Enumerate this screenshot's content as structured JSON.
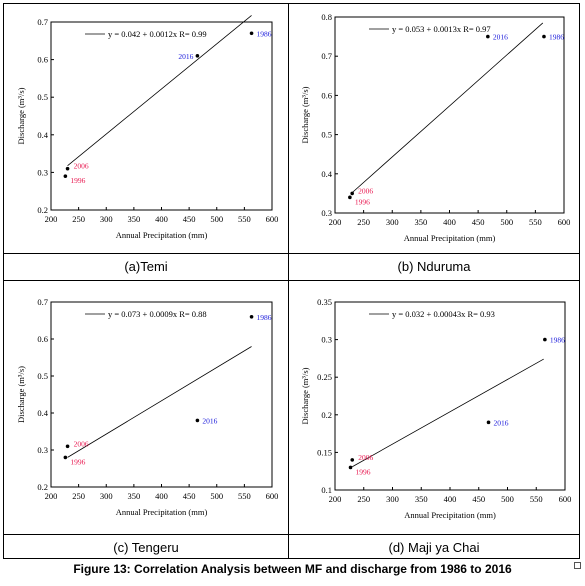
{
  "figure_caption": "Figure 13: Correlation Analysis between MF and discharge from 1986 to 2016",
  "panel_captions": [
    "(a)Temi",
    "(b) Nduruma",
    "(c) Tengeru",
    "(d) Maji ya Chai"
  ],
  "chart_data": [
    {
      "type": "scatter",
      "title": "",
      "xlabel": "Annual Precipitation (mm)",
      "ylabel": "Discharge (m³/s)",
      "xlim": [
        200,
        600
      ],
      "ylim": [
        0.2,
        0.7
      ],
      "xticks": [
        200,
        250,
        300,
        350,
        400,
        450,
        500,
        550,
        600
      ],
      "yticks": [
        0.2,
        0.3,
        0.4,
        0.5,
        0.6,
        0.7
      ],
      "ytick_labels": [
        "0.2",
        "0.3",
        "0.4",
        "0.5",
        "0.6",
        "0.7"
      ],
      "points": [
        {
          "label": "2006",
          "x": 230,
          "y": 0.31,
          "color": "#e8174f"
        },
        {
          "label": "1996",
          "x": 226,
          "y": 0.29,
          "color": "#e8174f"
        },
        {
          "label": "2016",
          "x": 465,
          "y": 0.61,
          "color": "#1a1adb"
        },
        {
          "label": "1986",
          "x": 563,
          "y": 0.67,
          "color": "#1a1adb"
        }
      ],
      "trendline": {
        "intercept": 0.042,
        "slope": 0.0012,
        "x_range": [
          230,
          563
        ],
        "legend": "y = 0.042 + 0.0012x   R= 0.99"
      }
    },
    {
      "type": "scatter",
      "title": "",
      "xlabel": "Annual Precipitation (mm)",
      "ylabel": "Discharge (m³/s)",
      "xlim": [
        200,
        600
      ],
      "ylim": [
        0.3,
        0.8
      ],
      "xticks": [
        200,
        250,
        300,
        350,
        400,
        450,
        500,
        550,
        600
      ],
      "yticks": [
        0.3,
        0.4,
        0.5,
        0.6,
        0.7,
        0.8
      ],
      "ytick_labels": [
        "0.3",
        "0.4",
        "0.5",
        "0.6",
        "0.7",
        "0.8"
      ],
      "points": [
        {
          "label": "2006",
          "x": 230,
          "y": 0.35,
          "color": "#e8174f"
        },
        {
          "label": "1996",
          "x": 226,
          "y": 0.34,
          "color": "#e8174f"
        },
        {
          "label": "2016",
          "x": 467,
          "y": 0.75,
          "color": "#1a1adb"
        },
        {
          "label": "1986",
          "x": 565,
          "y": 0.75,
          "color": "#1a1adb"
        }
      ],
      "trendline": {
        "intercept": 0.053,
        "slope": 0.0013,
        "x_range": [
          230,
          563
        ],
        "legend": "y = 0.053 + 0.0013x   R= 0.97"
      }
    },
    {
      "type": "scatter",
      "title": "",
      "xlabel": "Annual Precipitation (mm)",
      "ylabel": "Discharge (m³/s)",
      "xlim": [
        200,
        600
      ],
      "ylim": [
        0.2,
        0.7
      ],
      "xticks": [
        200,
        250,
        300,
        350,
        400,
        450,
        500,
        550,
        600
      ],
      "yticks": [
        0.2,
        0.3,
        0.4,
        0.5,
        0.6,
        0.7
      ],
      "ytick_labels": [
        "0.2",
        "0.3",
        "0.4",
        "0.5",
        "0.6",
        "0.7"
      ],
      "points": [
        {
          "label": "2006",
          "x": 230,
          "y": 0.31,
          "color": "#e8174f"
        },
        {
          "label": "1996",
          "x": 226,
          "y": 0.28,
          "color": "#e8174f"
        },
        {
          "label": "2016",
          "x": 465,
          "y": 0.38,
          "color": "#1a1adb"
        },
        {
          "label": "1986",
          "x": 563,
          "y": 0.66,
          "color": "#1a1adb"
        }
      ],
      "trendline": {
        "intercept": 0.073,
        "slope": 0.0009,
        "x_range": [
          230,
          563
        ],
        "legend": "y = 0.073 + 0.0009x   R= 0.88"
      }
    },
    {
      "type": "scatter",
      "title": "",
      "xlabel": "Annual Precipitation (mm)",
      "ylabel": "Discharge (m³/s)",
      "xlim": [
        200,
        600
      ],
      "ylim": [
        0.1,
        0.35
      ],
      "xticks": [
        200,
        250,
        300,
        350,
        400,
        450,
        500,
        550,
        600
      ],
      "yticks": [
        0.1,
        0.15,
        0.2,
        0.25,
        0.3,
        0.35
      ],
      "ytick_labels": [
        "0.1",
        "0.15",
        "0.2",
        "0.25",
        "0.3",
        "0.35"
      ],
      "points": [
        {
          "label": "2006",
          "x": 230,
          "y": 0.14,
          "color": "#e8174f"
        },
        {
          "label": "1996",
          "x": 227,
          "y": 0.13,
          "color": "#e8174f"
        },
        {
          "label": "2016",
          "x": 467,
          "y": 0.19,
          "color": "#1a1adb"
        },
        {
          "label": "1986",
          "x": 565,
          "y": 0.3,
          "color": "#1a1adb"
        }
      ],
      "trendline": {
        "intercept": 0.032,
        "slope": 0.00043,
        "x_range": [
          230,
          563
        ],
        "legend": "y = 0.032 + 0.00043x   R= 0.93"
      }
    }
  ]
}
